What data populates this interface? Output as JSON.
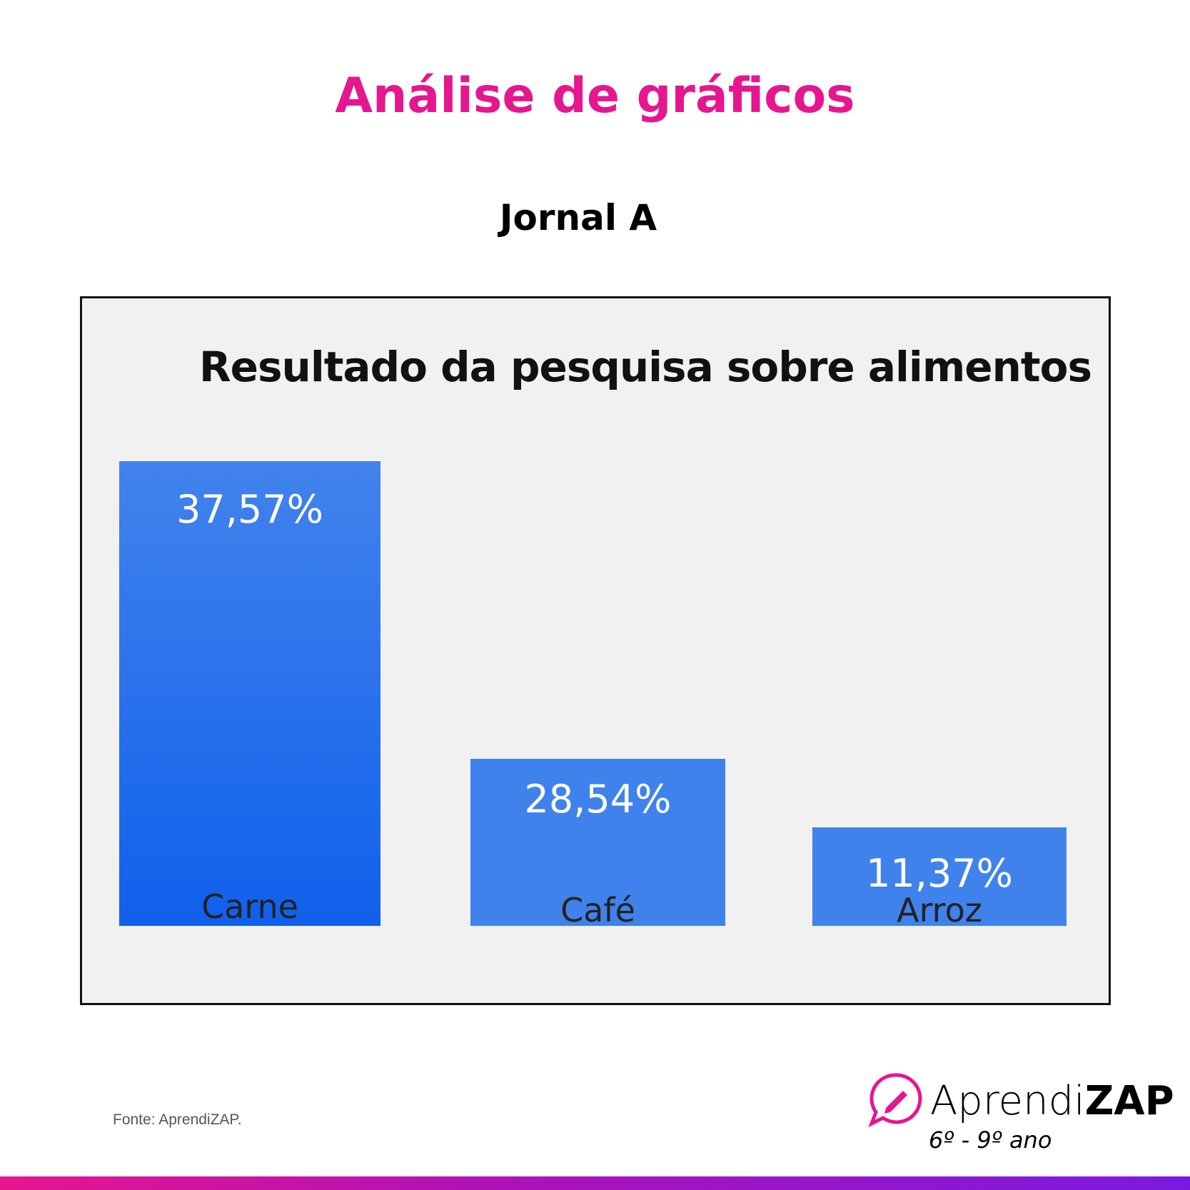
{
  "header": {
    "title": "Análise de gráficos",
    "subtitle": "Jornal A"
  },
  "chart_data": {
    "type": "bar",
    "title": "Resultado da pesquisa sobre alimentos",
    "categories": [
      "Carne",
      "Café",
      "Arroz"
    ],
    "values": [
      37.57,
      28.54,
      11.37
    ],
    "data_labels": [
      "37,57%",
      "28,54%",
      "11,37%"
    ],
    "xlabel": "",
    "ylabel": "",
    "grid": false,
    "bar_color": "#3f82ec"
  },
  "footer": {
    "source": "Fonte: AprendiZAP.",
    "brand_light": "Aprendi",
    "brand_bold": "ZAP",
    "grade": "6º - 9º ano"
  },
  "colors": {
    "accent": "#e6168f",
    "bar": "#3f82ec",
    "bottom_bar_end": "#7a1ae0"
  }
}
